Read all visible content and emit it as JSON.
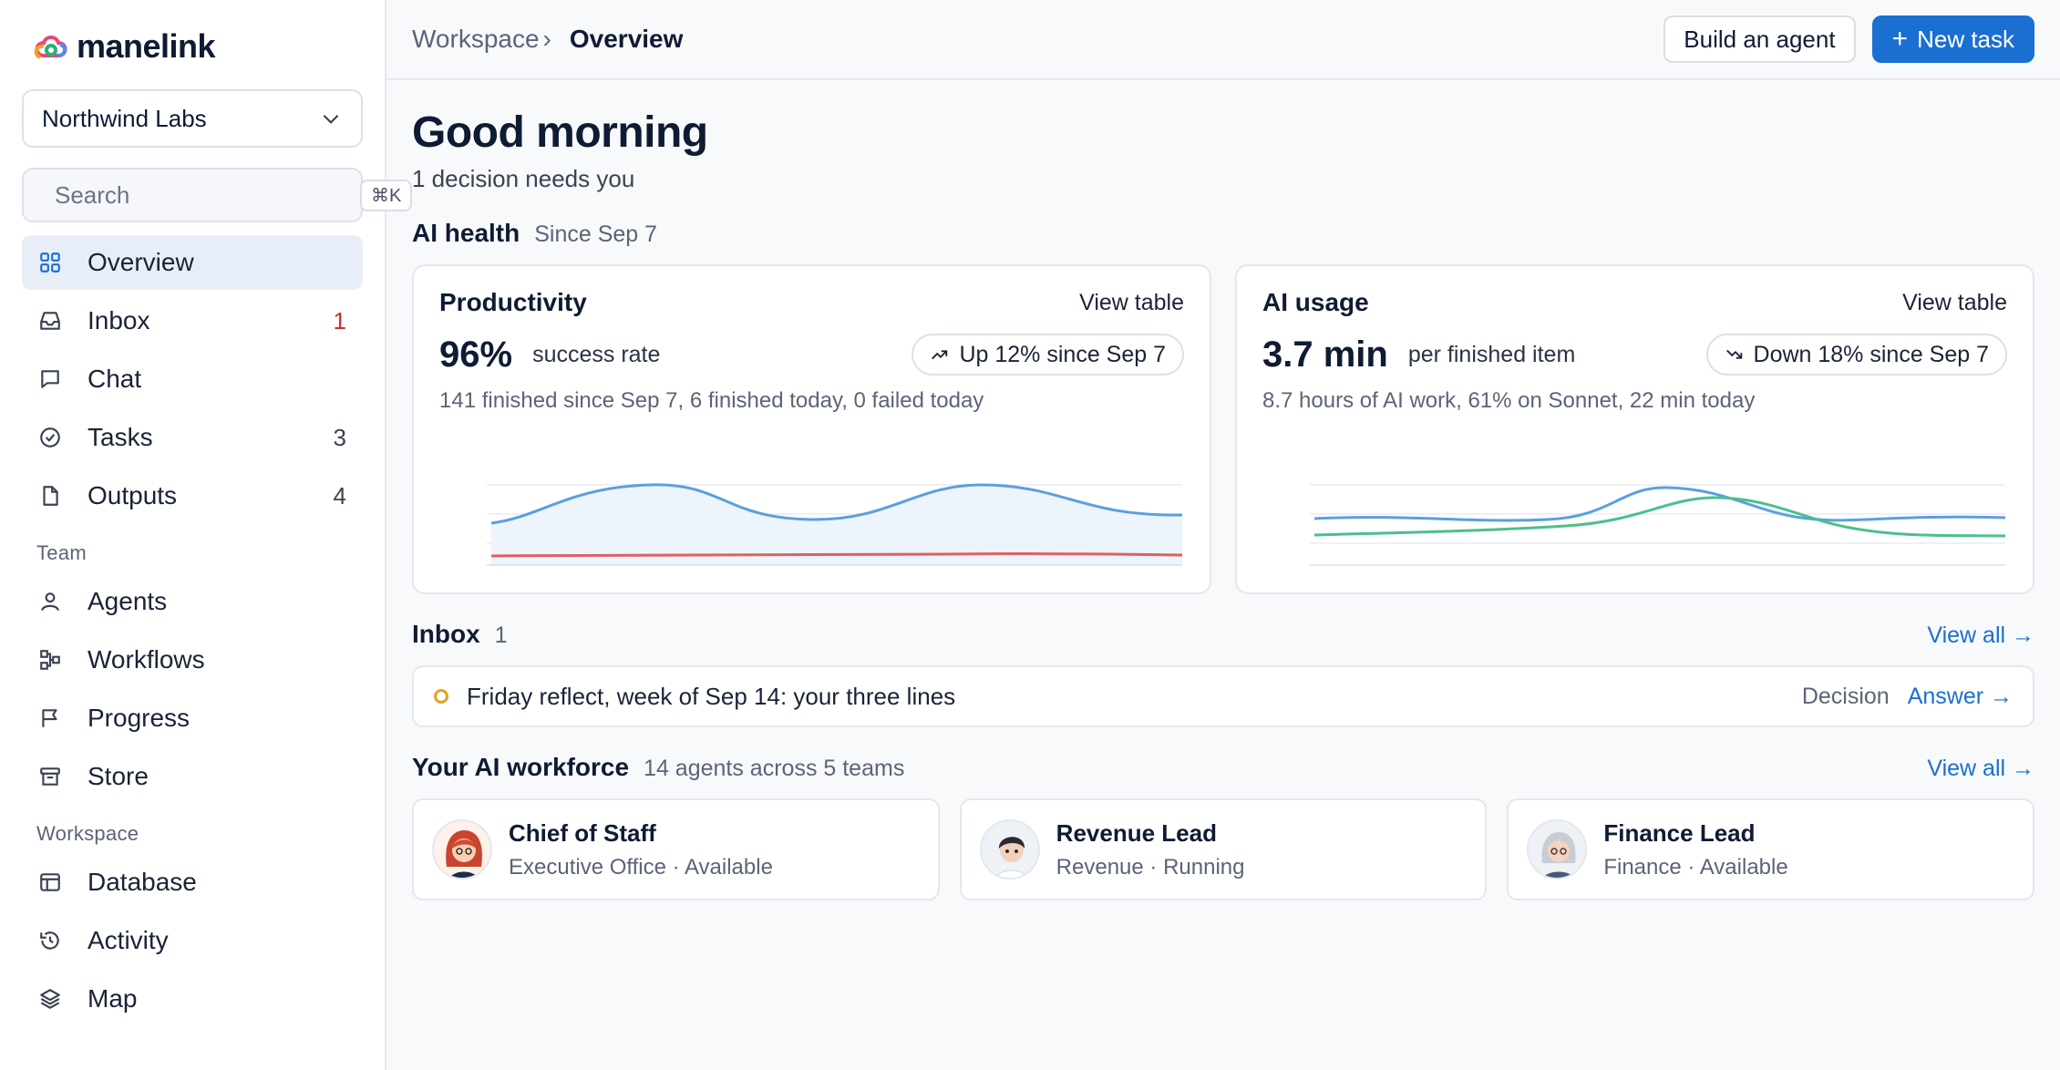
{
  "brand": {
    "name": "manelink"
  },
  "org": {
    "name": "Northwind Labs"
  },
  "search": {
    "placeholder": "Search",
    "shortcut": "⌘K"
  },
  "nav": {
    "main": [
      {
        "label": "Overview",
        "count": "",
        "icon": "grid-icon",
        "active": true
      },
      {
        "label": "Inbox",
        "count": "1",
        "icon": "inbox-icon"
      },
      {
        "label": "Chat",
        "count": "",
        "icon": "chat-icon"
      },
      {
        "label": "Tasks",
        "count": "3",
        "icon": "check-circle-icon"
      },
      {
        "label": "Outputs",
        "count": "4",
        "icon": "file-icon"
      }
    ],
    "team_label": "Team",
    "team": [
      {
        "label": "Agents",
        "icon": "user-icon"
      },
      {
        "label": "Workflows",
        "icon": "workflow-icon"
      },
      {
        "label": "Progress",
        "icon": "flag-icon"
      },
      {
        "label": "Store",
        "icon": "store-icon"
      }
    ],
    "workspace_label": "Workspace",
    "workspace": [
      {
        "label": "Database",
        "icon": "table-icon"
      },
      {
        "label": "Activity",
        "icon": "history-icon"
      },
      {
        "label": "Map",
        "icon": "layers-icon"
      }
    ]
  },
  "breadcrumb": {
    "parent": "Workspace",
    "separator": "›",
    "current": "Overview"
  },
  "actions": {
    "build_agent": "Build an agent",
    "new_task": "New task"
  },
  "greeting": {
    "title": "Good morning",
    "subtitle": "1 decision needs you"
  },
  "ai_health": {
    "title": "AI health",
    "meta": "Since Sep 7",
    "cards": [
      {
        "title": "Productivity",
        "view": "View table",
        "value": "96%",
        "value_label": "success rate",
        "trend": "Up 12% since Sep 7",
        "trend_dir": "up",
        "detail": "141 finished since Sep 7, 6 finished today, 0 failed today"
      },
      {
        "title": "AI usage",
        "view": "View table",
        "value": "3.7 min",
        "value_label": "per finished item",
        "trend": "Down 18% since Sep 7",
        "trend_dir": "down",
        "detail": "8.7 hours of AI work, 61% on Sonnet, 22 min today"
      }
    ]
  },
  "inbox": {
    "title": "Inbox",
    "count": "1",
    "view_all": "View all →",
    "items": [
      {
        "text": "Friday reflect, week of Sep 14: your three lines",
        "type": "Decision",
        "action": "Answer →"
      }
    ]
  },
  "workforce": {
    "title": "Your AI workforce",
    "meta": "14 agents across 5 teams",
    "view_all": "View all →",
    "agents": [
      {
        "name": "Chief of Staff",
        "meta": "Executive Office · Available"
      },
      {
        "name": "Revenue Lead",
        "meta": "Revenue · Running"
      },
      {
        "name": "Finance Lead",
        "meta": "Finance · Available"
      }
    ]
  },
  "colors": {
    "accent": "#1a6fd1",
    "alert": "#d12f2f",
    "pending": "#e0a421",
    "series_blue": "#5a9fe0",
    "series_red": "#e06060",
    "series_green": "#4cc08a"
  }
}
